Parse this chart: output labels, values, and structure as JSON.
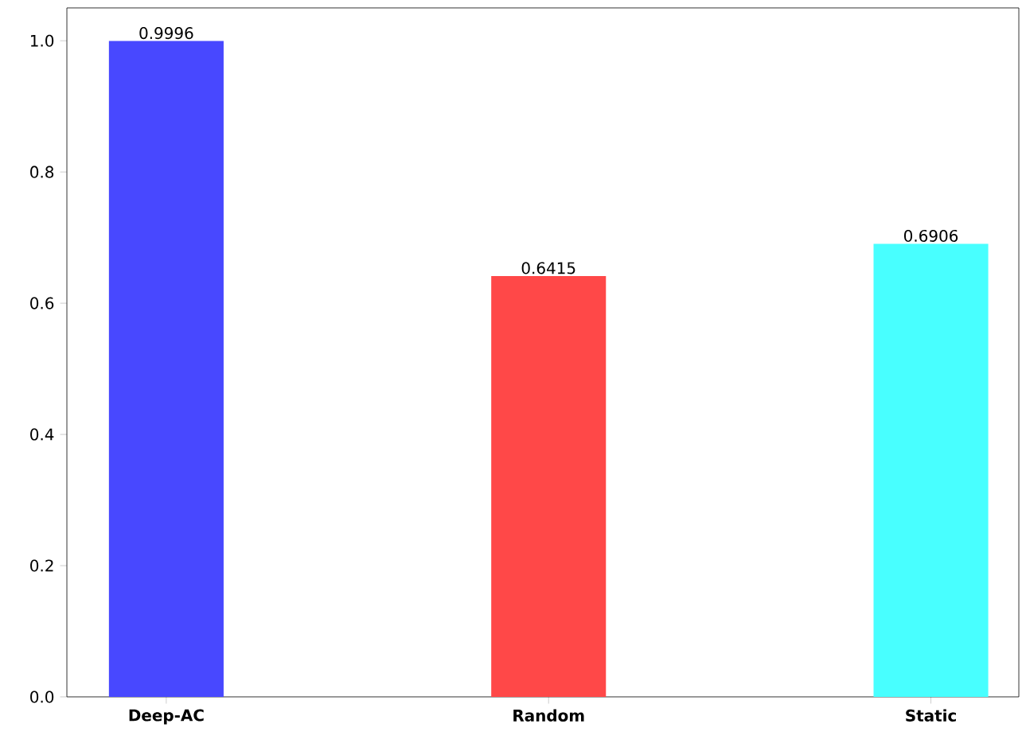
{
  "chart_data": {
    "type": "bar",
    "categories": [
      "Deep-AC",
      "Random",
      "Static"
    ],
    "values": [
      0.9996,
      0.6415,
      0.6906
    ],
    "colors": [
      "#4848ff",
      "#ff4848",
      "#48ffff"
    ],
    "ylim": [
      0,
      1.05
    ],
    "yticks": [
      {
        "value": 0,
        "label": "0.0"
      },
      0.2,
      0.4,
      0.6,
      0.8,
      {
        "value": 1,
        "label": "1.0"
      }
    ],
    "data_labels": true
  }
}
